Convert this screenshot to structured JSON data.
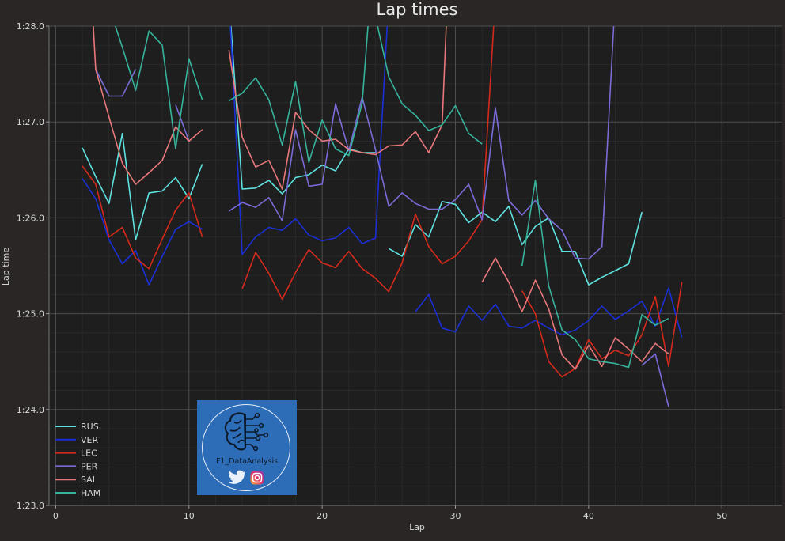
{
  "chart_data": {
    "type": "line",
    "title": "Lap times",
    "xlabel": "Lap",
    "ylabel": "Lap time",
    "xlim": [
      -0.5,
      54.5
    ],
    "ylim": [
      83.0,
      88.0
    ],
    "x_ticks": [
      0,
      10,
      20,
      30,
      40,
      50
    ],
    "y_ticks": [
      {
        "value": 83,
        "label": "1:23.0"
      },
      {
        "value": 84,
        "label": "1:24.0"
      },
      {
        "value": 85,
        "label": "1:25.0"
      },
      {
        "value": 86,
        "label": "1:26.0"
      },
      {
        "value": 87,
        "label": "1:27.0"
      },
      {
        "value": 88,
        "label": "1:28.0"
      }
    ],
    "grid": true,
    "legend_position": "bottom-left",
    "series": [
      {
        "name": "RUS",
        "color": "#5ee2e0",
        "x": [
          2,
          3,
          4,
          5,
          6,
          7,
          8,
          9,
          10,
          11,
          null,
          13,
          14,
          15,
          16,
          17,
          18,
          19,
          20,
          21,
          22,
          23,
          24,
          null,
          25,
          26,
          27,
          28,
          29,
          30,
          31,
          32,
          33,
          34,
          35,
          36,
          37,
          38,
          39,
          40,
          41,
          42,
          43,
          44
        ],
        "y": [
          86.73,
          86.43,
          86.15,
          86.88,
          85.77,
          86.26,
          86.28,
          86.42,
          86.2,
          86.56,
          null,
          88.3,
          86.3,
          86.31,
          86.39,
          86.25,
          86.42,
          86.45,
          86.55,
          86.49,
          86.72,
          86.68,
          86.68,
          null,
          85.68,
          85.6,
          85.93,
          85.8,
          86.17,
          86.14,
          85.95,
          86.06,
          85.96,
          86.12,
          85.72,
          85.91,
          86.0,
          85.65,
          85.65,
          85.3,
          85.38,
          85.45,
          85.52,
          86.06
        ]
      },
      {
        "name": "VER",
        "color": "#1a2fd6",
        "x": [
          2,
          3,
          4,
          5,
          6,
          7,
          8,
          9,
          10,
          11,
          null,
          13,
          14,
          15,
          16,
          17,
          18,
          19,
          20,
          21,
          22,
          23,
          24,
          25,
          null,
          27,
          28,
          29,
          30,
          31,
          32,
          33,
          34,
          35,
          36,
          37,
          38,
          39,
          40,
          41,
          42,
          43,
          44,
          45,
          46,
          47
        ],
        "y": [
          86.41,
          86.2,
          85.77,
          85.52,
          85.66,
          85.3,
          85.6,
          85.88,
          85.96,
          85.88,
          null,
          88.3,
          85.62,
          85.8,
          85.9,
          85.87,
          85.99,
          85.82,
          85.76,
          85.79,
          85.9,
          85.73,
          85.79,
          88.3,
          null,
          85.02,
          85.2,
          84.85,
          84.81,
          85.08,
          84.93,
          85.1,
          84.87,
          84.85,
          84.93,
          84.85,
          84.78,
          84.83,
          84.93,
          85.08,
          84.94,
          85.03,
          85.13,
          84.87,
          85.27,
          84.75
        ]
      },
      {
        "name": "LEC",
        "color": "#d42a1c",
        "x": [
          2,
          3,
          4,
          5,
          6,
          7,
          8,
          9,
          10,
          11,
          null,
          14,
          15,
          16,
          17,
          18,
          19,
          20,
          21,
          22,
          23,
          24,
          25,
          26,
          27,
          28,
          29,
          30,
          31,
          32,
          33,
          null,
          35,
          36,
          37,
          38,
          39,
          40,
          41,
          42,
          43,
          44,
          45,
          46,
          47
        ],
        "y": [
          86.54,
          86.35,
          85.8,
          85.9,
          85.58,
          85.47,
          85.78,
          86.08,
          86.26,
          85.8,
          null,
          85.26,
          85.64,
          85.42,
          85.15,
          85.43,
          85.67,
          85.53,
          85.48,
          85.65,
          85.47,
          85.37,
          85.23,
          85.53,
          86.04,
          85.7,
          85.52,
          85.6,
          85.76,
          85.98,
          88.3,
          null,
          85.24,
          85.0,
          84.5,
          84.34,
          84.43,
          84.73,
          84.53,
          84.62,
          84.56,
          84.78,
          85.18,
          84.45,
          85.33
        ]
      },
      {
        "name": "PER",
        "color": "#7a6cd6",
        "x": [
          3,
          4,
          5,
          6,
          null,
          9,
          10,
          null,
          13,
          14,
          15,
          16,
          17,
          18,
          19,
          20,
          21,
          22,
          23,
          24,
          25,
          26,
          27,
          28,
          29,
          30,
          31,
          32,
          33,
          34,
          35,
          36,
          37,
          38,
          39,
          40,
          41,
          42,
          null,
          44,
          45,
          46
        ],
        "y": [
          87.55,
          87.27,
          87.27,
          87.55,
          null,
          87.18,
          86.8,
          null,
          86.07,
          86.16,
          86.11,
          86.21,
          85.97,
          86.92,
          86.33,
          86.35,
          87.19,
          86.7,
          87.26,
          86.71,
          86.12,
          86.26,
          86.15,
          86.09,
          86.09,
          86.19,
          86.35,
          85.98,
          87.15,
          86.18,
          86.03,
          86.18,
          85.99,
          85.87,
          85.58,
          85.57,
          85.7,
          88.3,
          null,
          84.46,
          84.58,
          84.03
        ]
      },
      {
        "name": "SAI",
        "color": "#e8777a",
        "x": [
          2.7,
          3,
          4,
          5,
          6,
          7,
          8,
          9,
          10,
          11,
          null,
          13,
          14,
          15,
          16,
          17,
          18,
          19,
          20,
          21,
          22,
          23,
          24,
          25,
          26,
          27,
          28,
          29,
          29.4,
          null,
          32,
          33,
          34,
          35,
          36,
          37,
          38,
          39,
          40,
          41,
          42,
          43,
          44,
          45,
          46
        ],
        "y": [
          88.3,
          87.55,
          87.05,
          86.57,
          86.35,
          86.47,
          86.6,
          86.95,
          86.8,
          86.92,
          null,
          87.75,
          86.84,
          86.53,
          86.6,
          86.3,
          87.1,
          86.92,
          86.8,
          86.82,
          86.71,
          86.68,
          86.66,
          86.75,
          86.76,
          86.9,
          86.68,
          86.97,
          88.3,
          null,
          85.33,
          85.58,
          85.33,
          85.02,
          85.35,
          85.05,
          84.57,
          84.42,
          84.67,
          84.45,
          84.75,
          84.63,
          84.5,
          84.69,
          84.58
        ]
      },
      {
        "name": "HAM",
        "color": "#36b39b",
        "x": [
          3,
          4,
          5,
          6,
          7,
          8,
          9,
          10,
          11,
          null,
          13,
          14,
          15,
          16,
          17,
          18,
          19,
          20,
          21,
          22,
          23,
          23.6,
          24,
          25,
          26,
          27,
          28,
          29,
          30,
          31,
          32,
          null,
          35,
          36,
          37,
          38,
          39,
          40,
          41,
          42,
          43,
          44,
          45,
          46
        ],
        "y": [
          88.3,
          88.2,
          87.78,
          87.33,
          87.95,
          87.8,
          86.72,
          87.66,
          87.23,
          null,
          87.22,
          87.3,
          87.46,
          87.23,
          86.76,
          87.42,
          86.58,
          87.02,
          86.72,
          86.65,
          87.2,
          88.3,
          88.1,
          87.47,
          87.19,
          87.07,
          86.91,
          86.97,
          87.17,
          86.88,
          86.77,
          null,
          85.5,
          86.39,
          85.29,
          84.83,
          84.73,
          84.53,
          84.5,
          84.48,
          84.44,
          84.99,
          84.88,
          84.95
        ]
      }
    ]
  },
  "logo": {
    "text": "F1_DataAnalysis"
  }
}
